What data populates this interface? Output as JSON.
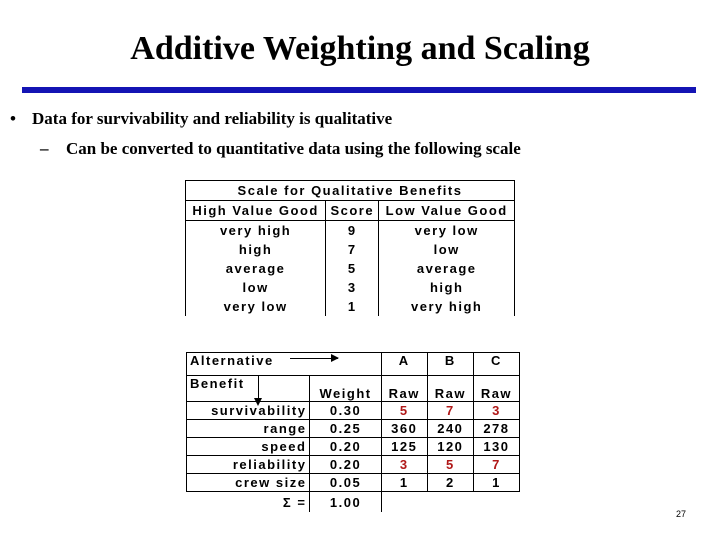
{
  "title": "Additive Weighting and Scaling",
  "bullets": {
    "level1": "Data for survivability and reliability is qualitative",
    "level2": "Can be converted to quantitative data using the following scale",
    "dot": "•",
    "dash": "–"
  },
  "scale_table": {
    "title": "Scale for Qualitative Benefits",
    "headers": [
      "High Value Good",
      "Score",
      "Low Value Good"
    ],
    "rows": [
      [
        "very high",
        "9",
        "very low"
      ],
      [
        "high",
        "7",
        "low"
      ],
      [
        "average",
        "5",
        "average"
      ],
      [
        "low",
        "3",
        "high"
      ],
      [
        "very low",
        "1",
        "very high"
      ]
    ]
  },
  "alt_table": {
    "alternative_label": "Alternative",
    "benefit_label": "Benefit",
    "weight_label": "Weight",
    "alternatives": [
      "A",
      "B",
      "C"
    ],
    "raw_label": "Raw",
    "rows": [
      {
        "benefit": "survivability",
        "weight": "0.30",
        "values": [
          "5",
          "7",
          "3"
        ],
        "qualitative": true
      },
      {
        "benefit": "range",
        "weight": "0.25",
        "values": [
          "360",
          "240",
          "278"
        ],
        "qualitative": false
      },
      {
        "benefit": "speed",
        "weight": "0.20",
        "values": [
          "125",
          "120",
          "130"
        ],
        "qualitative": false
      },
      {
        "benefit": "reliability",
        "weight": "0.20",
        "values": [
          "3",
          "5",
          "7"
        ],
        "qualitative": true
      },
      {
        "benefit": "crew size",
        "weight": "0.05",
        "values": [
          "1",
          "2",
          "1"
        ],
        "qualitative": false
      }
    ],
    "sum_label": "Σ =",
    "sum_value": "1.00"
  },
  "colors": {
    "rule": "#1414b4",
    "qualitative_value": "#b01818"
  },
  "page_number": "27"
}
